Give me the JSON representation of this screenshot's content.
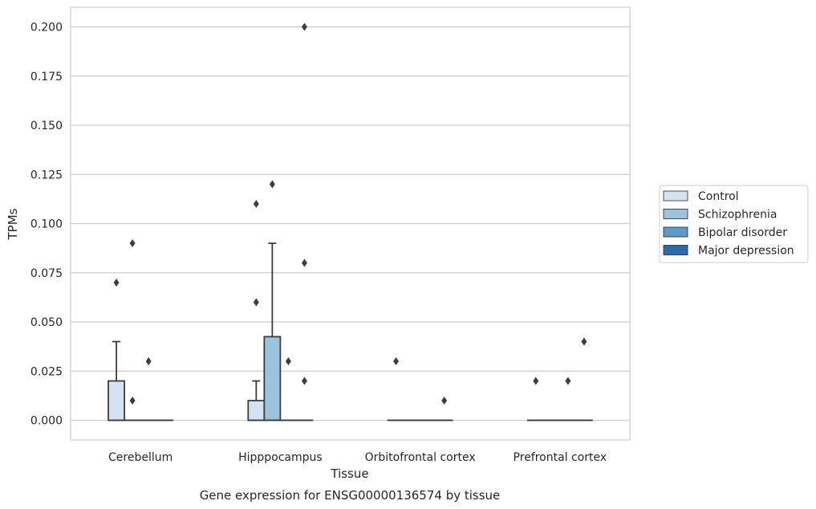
{
  "chart_data": {
    "type": "box",
    "caption": "Gene expression for ENSG00000136574 by tissue",
    "xlabel": "Tissue",
    "ylabel": "TPMs",
    "ylim": [
      -0.01,
      0.21
    ],
    "yticks": [
      "0.000",
      "0.025",
      "0.050",
      "0.075",
      "0.100",
      "0.125",
      "0.150",
      "0.175",
      "0.200"
    ],
    "grid": true,
    "legend_position": "right",
    "categories": [
      "Cerebellum",
      "Hipppocampus",
      "Orbitofrontal cortex",
      "Prefrontal cortex"
    ],
    "series": [
      {
        "name": "Control",
        "color": "#d4e3f1",
        "boxes": [
          {
            "q1": 0.0,
            "median": 0.0,
            "q3": 0.02,
            "whisker_low": 0.0,
            "whisker_high": 0.04,
            "outliers": [
              0.07
            ]
          },
          {
            "q1": 0.0,
            "median": 0.0,
            "q3": 0.01,
            "whisker_low": 0.0,
            "whisker_high": 0.02,
            "outliers": [
              0.06,
              0.11
            ]
          },
          {
            "q1": 0.0,
            "median": 0.0,
            "q3": 0.0,
            "whisker_low": 0.0,
            "whisker_high": 0.0,
            "outliers": [
              0.03
            ]
          },
          {
            "q1": 0.0,
            "median": 0.0,
            "q3": 0.0,
            "whisker_low": 0.0,
            "whisker_high": 0.0,
            "outliers": [
              0.02
            ]
          }
        ]
      },
      {
        "name": "Schizophrenia",
        "color": "#9cc3dc",
        "boxes": [
          {
            "q1": 0.0,
            "median": 0.0,
            "q3": 0.0,
            "whisker_low": 0.0,
            "whisker_high": 0.0,
            "outliers": [
              0.01,
              0.09
            ]
          },
          {
            "q1": 0.0,
            "median": 0.0,
            "q3": 0.0425,
            "whisker_low": 0.0,
            "whisker_high": 0.09,
            "outliers": [
              0.12
            ]
          },
          {
            "q1": 0.0,
            "median": 0.0,
            "q3": 0.0,
            "whisker_low": 0.0,
            "whisker_high": 0.0,
            "outliers": []
          },
          {
            "q1": 0.0,
            "median": 0.0,
            "q3": 0.0,
            "whisker_low": 0.0,
            "whisker_high": 0.0,
            "outliers": []
          }
        ]
      },
      {
        "name": "Bipolar disorder",
        "color": "#5b9bc9",
        "boxes": [
          {
            "q1": 0.0,
            "median": 0.0,
            "q3": 0.0,
            "whisker_low": 0.0,
            "whisker_high": 0.0,
            "outliers": [
              0.03
            ]
          },
          {
            "q1": 0.0,
            "median": 0.0,
            "q3": 0.0,
            "whisker_low": 0.0,
            "whisker_high": 0.0,
            "outliers": [
              0.03
            ]
          },
          {
            "q1": 0.0,
            "median": 0.0,
            "q3": 0.0,
            "whisker_low": 0.0,
            "whisker_high": 0.0,
            "outliers": []
          },
          {
            "q1": 0.0,
            "median": 0.0,
            "q3": 0.0,
            "whisker_low": 0.0,
            "whisker_high": 0.0,
            "outliers": [
              0.02
            ]
          }
        ]
      },
      {
        "name": "Major depression",
        "color": "#2a6bab",
        "boxes": [
          {
            "q1": 0.0,
            "median": 0.0,
            "q3": 0.0,
            "whisker_low": 0.0,
            "whisker_high": 0.0,
            "outliers": []
          },
          {
            "q1": 0.0,
            "median": 0.0,
            "q3": 0.0,
            "whisker_low": 0.0,
            "whisker_high": 0.0,
            "outliers": [
              0.02,
              0.08,
              0.2
            ]
          },
          {
            "q1": 0.0,
            "median": 0.0,
            "q3": 0.0,
            "whisker_low": 0.0,
            "whisker_high": 0.0,
            "outliers": [
              0.01
            ]
          },
          {
            "q1": 0.0,
            "median": 0.0,
            "q3": 0.0,
            "whisker_low": 0.0,
            "whisker_high": 0.0,
            "outliers": [
              0.04
            ]
          }
        ]
      }
    ]
  }
}
